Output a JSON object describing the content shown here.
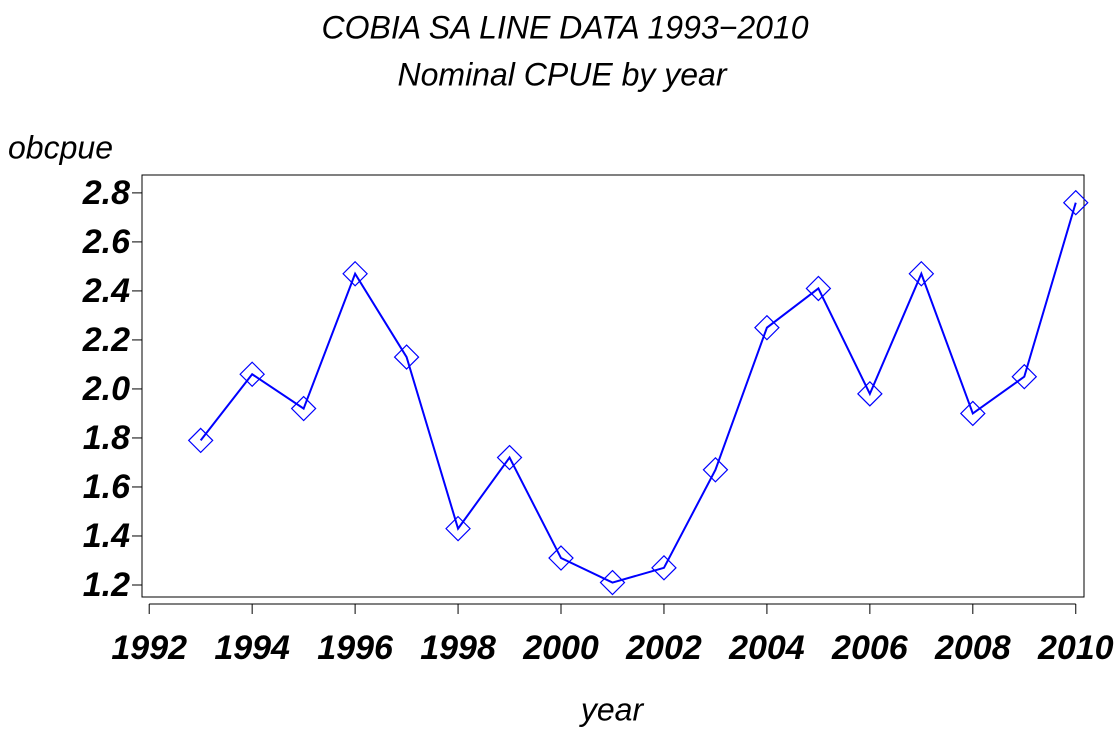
{
  "chart_data": {
    "type": "line",
    "title": "COBIA SA LINE DATA 1993−2010",
    "subtitle": "Nominal CPUE by year",
    "y_label": "obcpue",
    "x_label": "year",
    "x": [
      1993,
      1994,
      1995,
      1996,
      1997,
      1998,
      1999,
      2000,
      2001,
      2002,
      2003,
      2004,
      2005,
      2006,
      2007,
      2008,
      2009,
      2010
    ],
    "series": [
      {
        "name": "obcpue",
        "color": "#0000ff",
        "values": [
          1.79,
          2.06,
          1.92,
          2.47,
          2.13,
          1.43,
          1.72,
          1.31,
          1.21,
          1.27,
          1.67,
          2.25,
          2.41,
          1.98,
          2.47,
          1.9,
          2.05,
          2.76
        ]
      }
    ],
    "marker": "diamond",
    "xlim": [
      1991.86,
      2010.16
    ],
    "xticks": [
      1992,
      1994,
      1996,
      1998,
      2000,
      2002,
      2004,
      2006,
      2008,
      2010
    ],
    "ylim": [
      1.151,
      2.873
    ],
    "yticks": [
      {
        "value": 1.2,
        "label": "1.2"
      },
      {
        "value": 1.4,
        "label": "1.4"
      },
      {
        "value": 1.6,
        "label": "1.6"
      },
      {
        "value": 1.8,
        "label": "1.8"
      },
      {
        "value": 2.0,
        "label": "2.0"
      },
      {
        "value": 2.2,
        "label": "2.2"
      },
      {
        "value": 2.4,
        "label": "2.4"
      },
      {
        "value": 2.6,
        "label": "2.6"
      },
      {
        "value": 2.8,
        "label": "2.8"
      }
    ],
    "grid": false
  }
}
